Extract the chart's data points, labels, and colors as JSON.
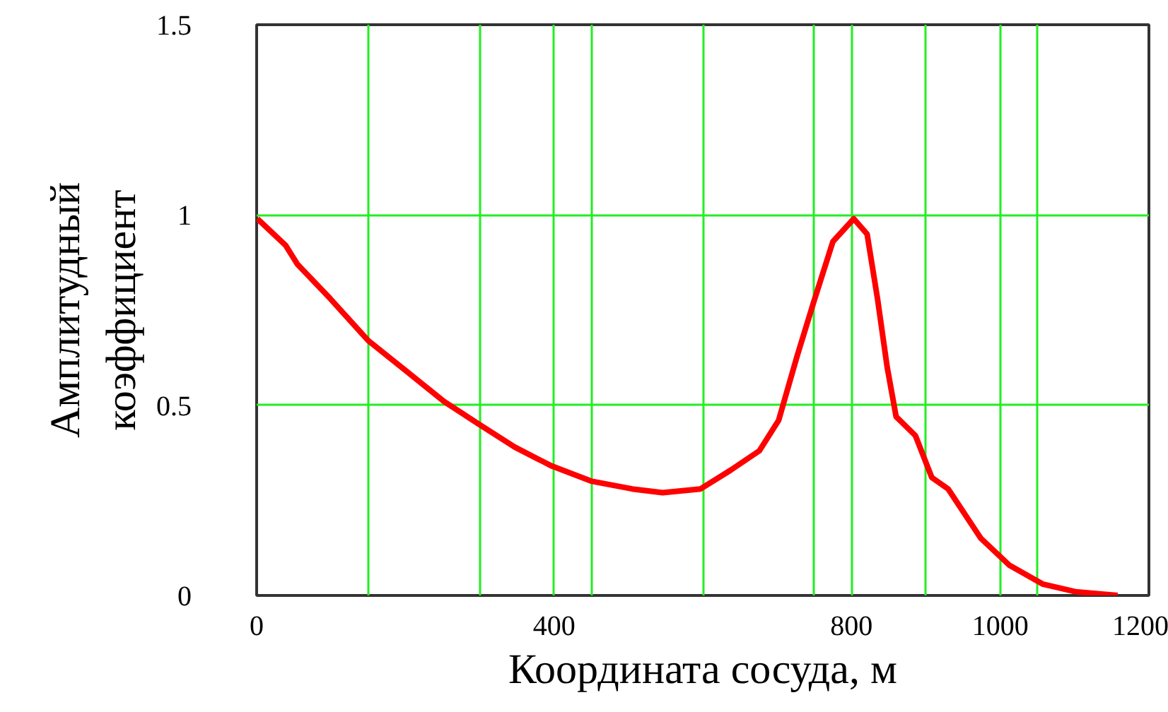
{
  "chart_data": {
    "type": "line",
    "xlabel": "Координата сосуда, м",
    "ylabel": "Амплитудный\nкоэффициент",
    "xlim": [
      0,
      1200
    ],
    "ylim": [
      0,
      1.5
    ],
    "xticks": [
      0,
      {
        "value": 150,
        "label": null
      },
      {
        "value": 300,
        "label": null
      },
      400,
      {
        "value": 450,
        "label": null
      },
      {
        "value": 600,
        "label": null
      },
      {
        "value": 750,
        "label": null
      },
      800,
      {
        "value": 900,
        "label": null
      },
      1000,
      {
        "value": 1050,
        "label": null
      },
      1200
    ],
    "yticks": [
      0,
      0.5,
      1,
      1.5
    ],
    "grid": true,
    "line_style": "solid",
    "marker": "none",
    "series": [
      {
        "color": "#ff0000",
        "x": [
          1,
          39,
          55,
          99,
          150,
          201,
          252,
          299,
          347,
          397,
          451,
          505,
          546,
          597,
          638,
          676,
          702,
          727,
          749,
          775,
          803,
          821,
          835,
          848,
          860,
          886,
          908,
          930,
          974,
          1012,
          1057,
          1101,
          1158
        ],
        "values": [
          0.99,
          0.92,
          0.87,
          0.78,
          0.67,
          0.59,
          0.51,
          0.45,
          0.39,
          0.34,
          0.3,
          0.28,
          0.27,
          0.28,
          0.33,
          0.38,
          0.46,
          0.63,
          0.77,
          0.93,
          0.99,
          0.95,
          0.78,
          0.6,
          0.47,
          0.42,
          0.31,
          0.28,
          0.15,
          0.08,
          0.03,
          0.01,
          0.0
        ]
      }
    ]
  }
}
